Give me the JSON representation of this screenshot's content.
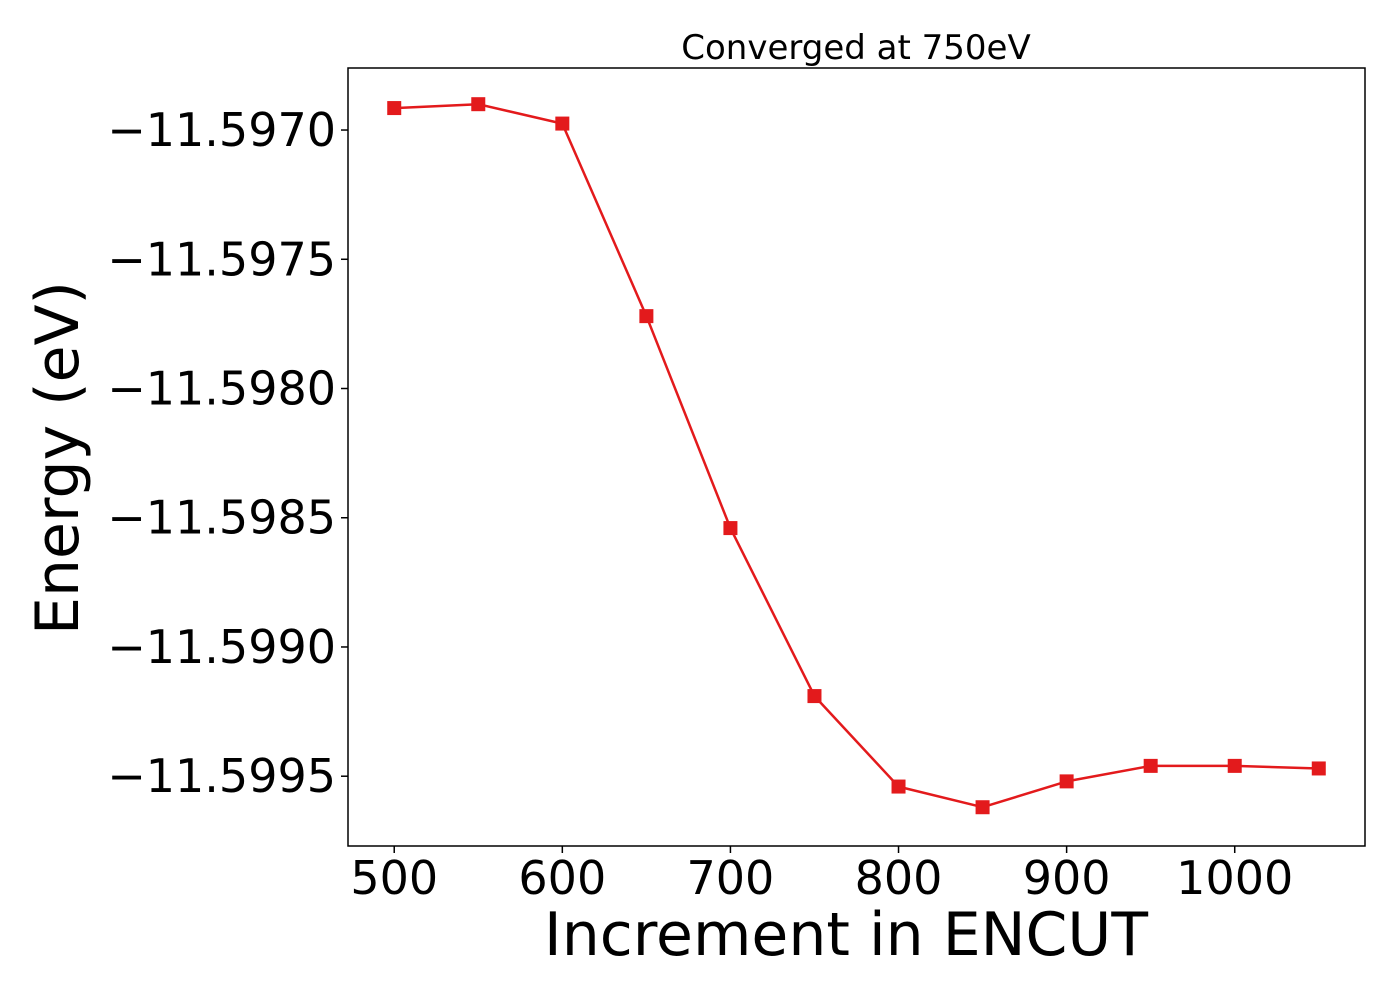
{
  "chart_data": {
    "type": "line",
    "title": "Converged at 750eV",
    "xlabel": "Increment in ENCUT",
    "ylabel": "Energy (eV)",
    "xlim": [
      472.5,
      1077.5
    ],
    "ylim": [
      -11.59977,
      -11.59676
    ],
    "x_ticks": [
      500,
      600,
      700,
      800,
      900,
      1000
    ],
    "x_tick_labels": [
      "500",
      "600",
      "700",
      "800",
      "900",
      "1000"
    ],
    "y_ticks": [
      -11.597,
      -11.5975,
      -11.598,
      -11.5985,
      -11.599,
      -11.5995
    ],
    "y_tick_labels": [
      "−11.5970",
      "−11.5975",
      "−11.5980",
      "−11.5985",
      "−11.5990",
      "−11.5995"
    ],
    "grid": false,
    "series": [
      {
        "marker": "square",
        "color": "#e31a1c",
        "x": [
          500,
          550,
          600,
          650,
          700,
          750,
          800,
          850,
          900,
          950,
          1000,
          1050
        ],
        "y": [
          -11.596915,
          -11.5969,
          -11.596975,
          -11.59772,
          -11.59854,
          -11.59919,
          -11.59954,
          -11.59962,
          -11.59952,
          -11.59946,
          -11.59946,
          -11.59947
        ]
      }
    ]
  }
}
